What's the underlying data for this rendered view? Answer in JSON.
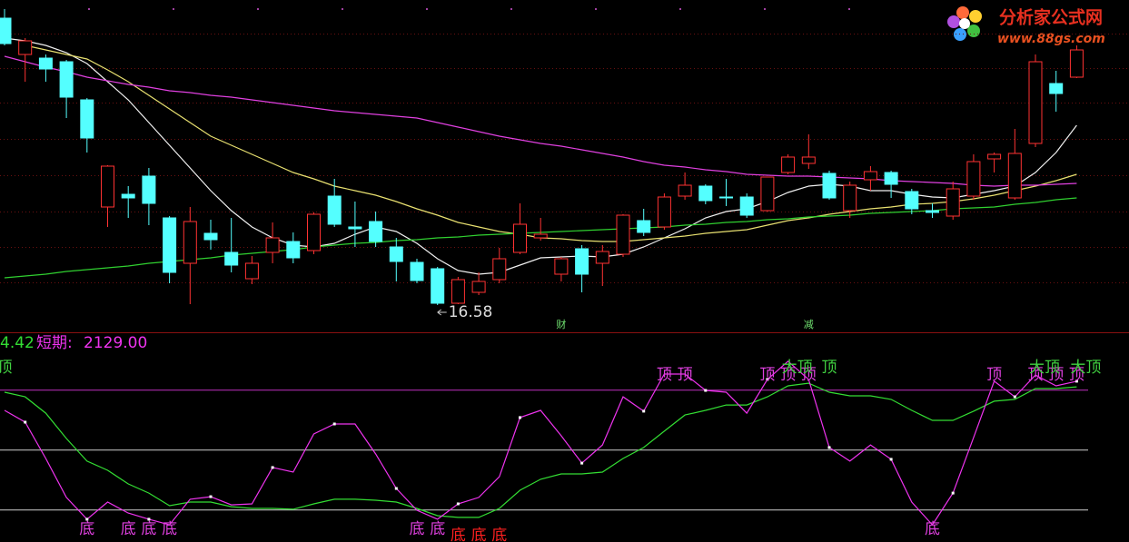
{
  "chart_data": [
    {
      "type": "candlestick",
      "ylim": [
        16.4,
        23.3
      ],
      "up_color": "#ff3232",
      "down_color": "#54ffff",
      "open": [
        22.9,
        22.1,
        22.02,
        21.94,
        21.1,
        18.74,
        19.02,
        19.42,
        18.5,
        17.5,
        18.16,
        17.74,
        17.16,
        17.74,
        17.98,
        17.78,
        18.98,
        18.3,
        18.42,
        17.86,
        17.52,
        17.38,
        16.62,
        16.86,
        17.14,
        17.74,
        18.06,
        17.26,
        17.82,
        17.5,
        17.7,
        18.44,
        18.3,
        18.98,
        19.2,
        18.96,
        18.96,
        18.66,
        19.5,
        19.7,
        19.48,
        18.66,
        19.34,
        19.5,
        19.08,
        18.66,
        18.54,
        18.98,
        19.8,
        18.94,
        20.14,
        21.46,
        21.6
      ],
      "close": [
        22.34,
        22.4,
        21.78,
        21.16,
        20.26,
        19.64,
        18.94,
        18.82,
        17.3,
        18.42,
        18.02,
        17.46,
        17.5,
        18.06,
        17.62,
        18.58,
        18.36,
        18.26,
        17.98,
        17.54,
        17.12,
        16.62,
        17.14,
        17.1,
        17.6,
        18.36,
        18.14,
        17.6,
        17.26,
        17.76,
        18.56,
        18.18,
        18.96,
        19.22,
        18.88,
        18.94,
        18.56,
        19.4,
        19.84,
        19.84,
        18.94,
        19.22,
        19.52,
        19.24,
        18.7,
        18.62,
        19.14,
        19.74,
        19.9,
        19.92,
        21.94,
        21.24,
        22.2
      ],
      "high": [
        23.1,
        22.46,
        22.1,
        21.98,
        21.14,
        19.66,
        19.2,
        19.6,
        18.54,
        18.74,
        18.46,
        18.5,
        17.66,
        18.4,
        18.18,
        18.62,
        19.36,
        18.86,
        18.64,
        18.06,
        17.6,
        17.42,
        17.2,
        17.3,
        17.84,
        18.82,
        18.5,
        17.64,
        17.9,
        17.9,
        18.58,
        18.7,
        19.04,
        19.5,
        19.24,
        19.36,
        19.04,
        19.4,
        19.9,
        20.34,
        19.54,
        19.3,
        19.64,
        19.54,
        19.14,
        18.82,
        19.3,
        19.9,
        19.94,
        20.46,
        22.1,
        21.74,
        22.3
      ],
      "low": [
        22.3,
        21.5,
        21.5,
        20.7,
        19.94,
        18.3,
        18.5,
        18.34,
        17.06,
        16.6,
        17.8,
        17.3,
        17.04,
        17.5,
        17.5,
        17.7,
        18.3,
        17.86,
        17.86,
        17.1,
        17.06,
        16.58,
        16.6,
        16.8,
        17.06,
        17.7,
        18.0,
        17.1,
        16.86,
        17.0,
        17.64,
        18.1,
        18.24,
        18.9,
        18.8,
        18.76,
        18.5,
        18.64,
        19.46,
        19.58,
        18.9,
        18.5,
        19.1,
        18.94,
        18.58,
        18.5,
        18.46,
        18.9,
        19.5,
        18.9,
        20.06,
        20.84,
        21.58
      ],
      "series": [
        {
          "color": "#f0f0f0",
          "values": [
            22.46,
            22.4,
            22.3,
            22.14,
            21.9,
            21.5,
            21.1,
            20.6,
            20.1,
            19.6,
            19.1,
            18.66,
            18.3,
            18.06,
            17.9,
            17.86,
            17.94,
            18.14,
            18.3,
            18.2,
            17.94,
            17.6,
            17.34,
            17.26,
            17.3,
            17.46,
            17.62,
            17.64,
            17.66,
            17.64,
            17.7,
            17.86,
            18.06,
            18.26,
            18.5,
            18.64,
            18.7,
            18.86,
            19.06,
            19.2,
            19.24,
            19.2,
            19.1,
            19.1,
            19.02,
            18.96,
            18.94,
            19.02,
            19.1,
            19.2,
            19.5,
            19.94,
            20.54
          ]
        },
        {
          "color": "#e8e070",
          "values": [
            null,
            22.3,
            22.2,
            22.1,
            22.0,
            21.76,
            21.5,
            21.2,
            20.9,
            20.6,
            20.3,
            20.1,
            19.9,
            19.7,
            19.5,
            19.36,
            19.2,
            19.1,
            19.0,
            18.86,
            18.7,
            18.56,
            18.4,
            18.3,
            18.2,
            18.14,
            18.06,
            18.04,
            18.0,
            17.98,
            17.98,
            18.02,
            18.06,
            18.1,
            18.16,
            18.2,
            18.24,
            18.34,
            18.44,
            18.5,
            18.58,
            18.64,
            18.7,
            18.74,
            18.8,
            18.82,
            18.86,
            18.92,
            19.0,
            19.1,
            19.2,
            19.32,
            19.46
          ]
        },
        {
          "color": "#e040e0",
          "values": [
            22.06,
            21.94,
            21.82,
            21.72,
            21.6,
            21.52,
            21.44,
            21.38,
            21.3,
            21.26,
            21.2,
            21.16,
            21.1,
            21.04,
            20.98,
            20.92,
            20.86,
            20.82,
            20.78,
            20.74,
            20.7,
            20.6,
            20.5,
            20.4,
            20.3,
            20.22,
            20.14,
            20.08,
            20.0,
            19.92,
            19.84,
            19.74,
            19.66,
            19.62,
            19.56,
            19.52,
            19.46,
            19.44,
            19.42,
            19.42,
            19.4,
            19.38,
            19.36,
            19.32,
            19.3,
            19.28,
            19.26,
            19.22,
            19.2,
            19.22,
            19.22,
            19.24,
            19.26
          ]
        },
        {
          "color": "#30d030",
          "values": [
            17.18,
            17.22,
            17.26,
            17.32,
            17.36,
            17.4,
            17.44,
            17.5,
            17.54,
            17.58,
            17.62,
            17.68,
            17.72,
            17.76,
            17.8,
            17.86,
            17.9,
            17.94,
            17.96,
            18.0,
            18.02,
            18.06,
            18.08,
            18.12,
            18.14,
            18.16,
            18.18,
            18.2,
            18.22,
            18.24,
            18.26,
            18.28,
            18.3,
            18.34,
            18.36,
            18.4,
            18.42,
            18.46,
            18.48,
            18.52,
            18.54,
            18.56,
            18.6,
            18.62,
            18.64,
            18.66,
            18.7,
            18.72,
            18.74,
            18.8,
            18.84,
            18.9,
            18.94
          ]
        }
      ],
      "events": [
        null,
        null,
        null,
        null,
        null,
        null,
        null,
        null,
        null,
        null,
        null,
        null,
        null,
        null,
        null,
        null,
        null,
        null,
        null,
        null,
        null,
        null,
        null,
        null,
        null,
        null,
        null,
        "财",
        null,
        null,
        null,
        null,
        null,
        null,
        null,
        null,
        null,
        null,
        null,
        "减",
        null,
        null,
        null,
        null,
        null,
        null,
        null,
        null,
        null,
        null,
        null,
        null,
        null
      ]
    },
    {
      "type": "line",
      "ylim": [
        4,
        104
      ],
      "header": {
        "long_value": "4.42",
        "short_label": "短期:",
        "short_value": "2129.00"
      },
      "levels": [
        {
          "value": 80,
          "color": "#c030c0"
        },
        {
          "value": 50,
          "color": "#d0d0d0"
        },
        {
          "value": 20,
          "color": "#d0d0d0"
        }
      ],
      "series": [
        {
          "color": "#ee33ee",
          "values": [
            69.9,
            64.0,
            45.8,
            26.3,
            15.4,
            24.0,
            18.5,
            15.4,
            12.6,
            25.4,
            26.7,
            22.6,
            23.1,
            41.3,
            39.0,
            58.1,
            63.1,
            63.1,
            48.1,
            30.8,
            19.9,
            15.4,
            23.1,
            26.3,
            36.7,
            66.3,
            69.9,
            57.2,
            43.5,
            52.6,
            76.7,
            69.5,
            88.1,
            88.1,
            79.9,
            79.0,
            68.5,
            85.4,
            94.5,
            85.4,
            51.3,
            44.5,
            52.6,
            45.4,
            24.0,
            12.6,
            28.5,
            56.3,
            84.5,
            76.7,
            87.6,
            82.2,
            84.5
          ]
        },
        {
          "color": "#33dd33",
          "values": [
            79.0,
            76.7,
            68.5,
            55.8,
            44.5,
            39.9,
            33.1,
            28.5,
            22.2,
            24.0,
            24.0,
            21.7,
            20.8,
            20.8,
            20.4,
            23.1,
            25.4,
            25.4,
            24.9,
            24.0,
            20.8,
            17.2,
            16.3,
            16.3,
            20.8,
            29.9,
            35.4,
            38.1,
            38.1,
            39.0,
            45.8,
            51.3,
            59.5,
            67.6,
            69.9,
            72.6,
            72.6,
            76.7,
            82.2,
            83.5,
            79.0,
            77.2,
            77.2,
            75.4,
            69.9,
            64.9,
            64.9,
            69.5,
            74.5,
            75.4,
            80.8,
            80.8,
            81.7
          ]
        }
      ],
      "signals": [
        {
          "at": 0,
          "label": "顶",
          "color": "#40d040"
        },
        {
          "at": 4,
          "label": "底",
          "color": "#e040e0"
        },
        {
          "at": 6,
          "label": "底",
          "color": "#e040e0"
        },
        {
          "at": 7,
          "label": "底",
          "color": "#e040e0"
        },
        {
          "at": 8,
          "label": "底",
          "color": "#e040e0"
        },
        {
          "at": 20,
          "label": "底",
          "color": "#e040e0"
        },
        {
          "at": 21,
          "label": "底",
          "color": "#e040e0"
        },
        {
          "at": 22,
          "label": "底",
          "color": "#ff2020"
        },
        {
          "at": 23,
          "label": "底",
          "color": "#ff2020"
        },
        {
          "at": 24,
          "label": "底",
          "color": "#ff2020"
        },
        {
          "at": 45,
          "label": "底",
          "color": "#e040e0"
        },
        {
          "at": 32,
          "label": "顶",
          "color": "#e040e0"
        },
        {
          "at": 33,
          "label": "顶",
          "color": "#e040e0"
        },
        {
          "at": 37,
          "label": "顶",
          "color": "#e040e0"
        },
        {
          "at": 38,
          "label": "顶",
          "color": "#e040e0"
        },
        {
          "at": 39,
          "label": "顶",
          "color": "#e040e0"
        },
        {
          "at": 38,
          "label": "大顶",
          "color": "#40d040"
        },
        {
          "at": 40,
          "label": "顶",
          "color": "#40d040"
        },
        {
          "at": 48,
          "label": "顶",
          "color": "#e040e0"
        },
        {
          "at": 50,
          "label": "顶",
          "color": "#e040e0"
        },
        {
          "at": 51,
          "label": "顶",
          "color": "#e040e0"
        },
        {
          "at": 52,
          "label": "顶",
          "color": "#e040e0"
        },
        {
          "at": 50,
          "label": "大顶",
          "color": "#40d040"
        },
        {
          "at": 52,
          "label": "大顶",
          "color": "#40d040"
        }
      ]
    }
  ],
  "logo": {
    "name": "分析家公式网",
    "url": "www.88gs.com"
  }
}
